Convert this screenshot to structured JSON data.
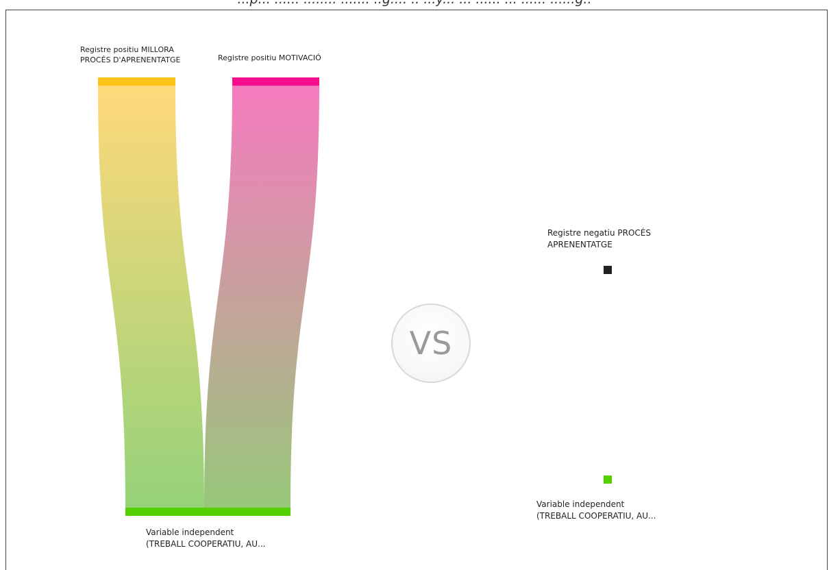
{
  "caption": "...p... ...... ........ ....... ..g.... .. ...y... ... ...... ... ...... ......g..",
  "left_diagram": {
    "source_a_label": "Registre positiu MILLORA\nPROCÉS D'APRENENTATGE",
    "source_b_label": "Registre positiu MOTIVACIÓ",
    "target_label": "Variable independent\n(TREBALL COOPERATIU, AU...",
    "colors": {
      "source_a": "#fcc419",
      "source_b": "#f80d8f",
      "target": "#55d000"
    }
  },
  "vs_label": "VS",
  "right_diagram": {
    "source_label": "Registre negatiu PROCÉS\nAPRENENTATGE",
    "target_label": "Variable independent\n(TREBALL COOPERATIU, AU...",
    "colors": {
      "source": "#222222",
      "target": "#55d000"
    }
  }
}
